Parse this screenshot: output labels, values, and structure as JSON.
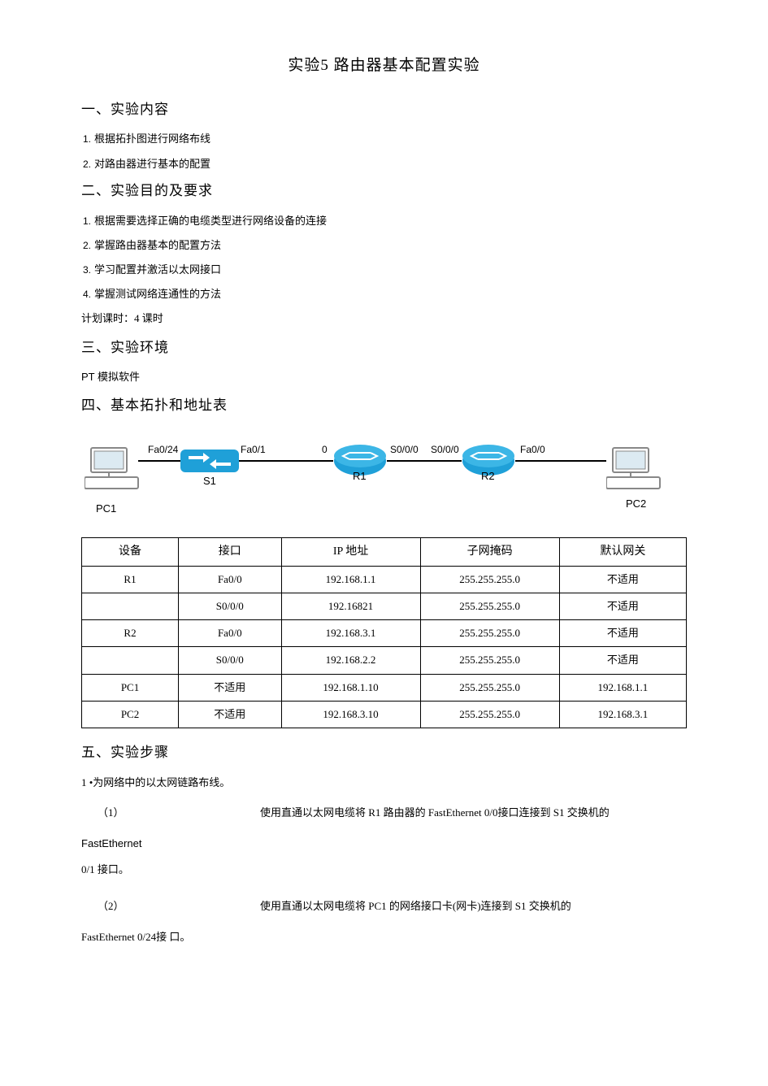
{
  "title": "实验5 路由器基本配置实验",
  "sec1": {
    "heading": "一、实验内容",
    "items": [
      "根据拓扑图进行网络布线",
      "对路由器进行基本的配置"
    ]
  },
  "sec2": {
    "heading": "二、实验目的及要求",
    "items": [
      "根据需要选择正确的电缆类型进行网络设备的连接",
      "掌握路由器基本的配置方法",
      "学习配置并激活以太网接口",
      "掌握测试网络连通性的方法"
    ],
    "note": "计划课时：4 课时"
  },
  "sec3": {
    "heading": "三、实验环境",
    "note": "PT 模拟软件"
  },
  "sec4": {
    "heading": "四、基本拓扑和地址表"
  },
  "diagram": {
    "pc1": "PC1",
    "pc2": "PC2",
    "s1": "S1",
    "r1": "R1",
    "r2": "R2",
    "fa024": "Fa0/24",
    "fa01": "Fa0/1",
    "zero": "0",
    "s000a": "S0/0/0",
    "s000b": "S0/0/0",
    "fa00": "Fa0/0",
    "switch_color": "#1fa0d8",
    "router_color": "#1fa0d8",
    "pc_stroke": "#888888"
  },
  "table": {
    "headers": [
      "设备",
      "接口",
      "IP 地址",
      "子网掩码",
      "默认网关"
    ],
    "rows": [
      [
        "R1",
        "Fa0/0",
        "192.168.1.1",
        "255.255.255.0",
        "不适用"
      ],
      [
        "",
        "S0/0/0",
        "192.16821",
        "255.255.255.0",
        "不适用"
      ],
      [
        "R2",
        "Fa0/0",
        "192.168.3.1",
        "255.255.255.0",
        "不适用"
      ],
      [
        "",
        "S0/0/0",
        "192.168.2.2",
        "255.255.255.0",
        "不适用"
      ],
      [
        "PC1",
        "不适用",
        "192.168.1.10",
        "255.255.255.0",
        "192.168.1.1"
      ],
      [
        "PC2",
        "不适用",
        "192.168.3.10",
        "255.255.255.0",
        "192.168.3.1"
      ]
    ],
    "col_widths": [
      "16%",
      "17%",
      "23%",
      "23%",
      "21%"
    ]
  },
  "sec5": {
    "heading": "五、实验步骤",
    "step1": "1 •为网络中的以太网链路布线。",
    "sub1_num": "（1）",
    "sub1_txt": "使用直通以太网电缆将 R1 路由器的 FastEthernet 0/0接口连接到 S1 交换机的",
    "sub1_cont": "FastEthernet",
    "sub1_cont2": "0/1 接口。",
    "sub2_num": "（2）",
    "sub2_txt": "使用直通以太网电缆将 PC1 的网络接口卡(网卡)连接到 S1 交换机的",
    "sub2_cont": "FastEthernet 0/24接 口。"
  }
}
